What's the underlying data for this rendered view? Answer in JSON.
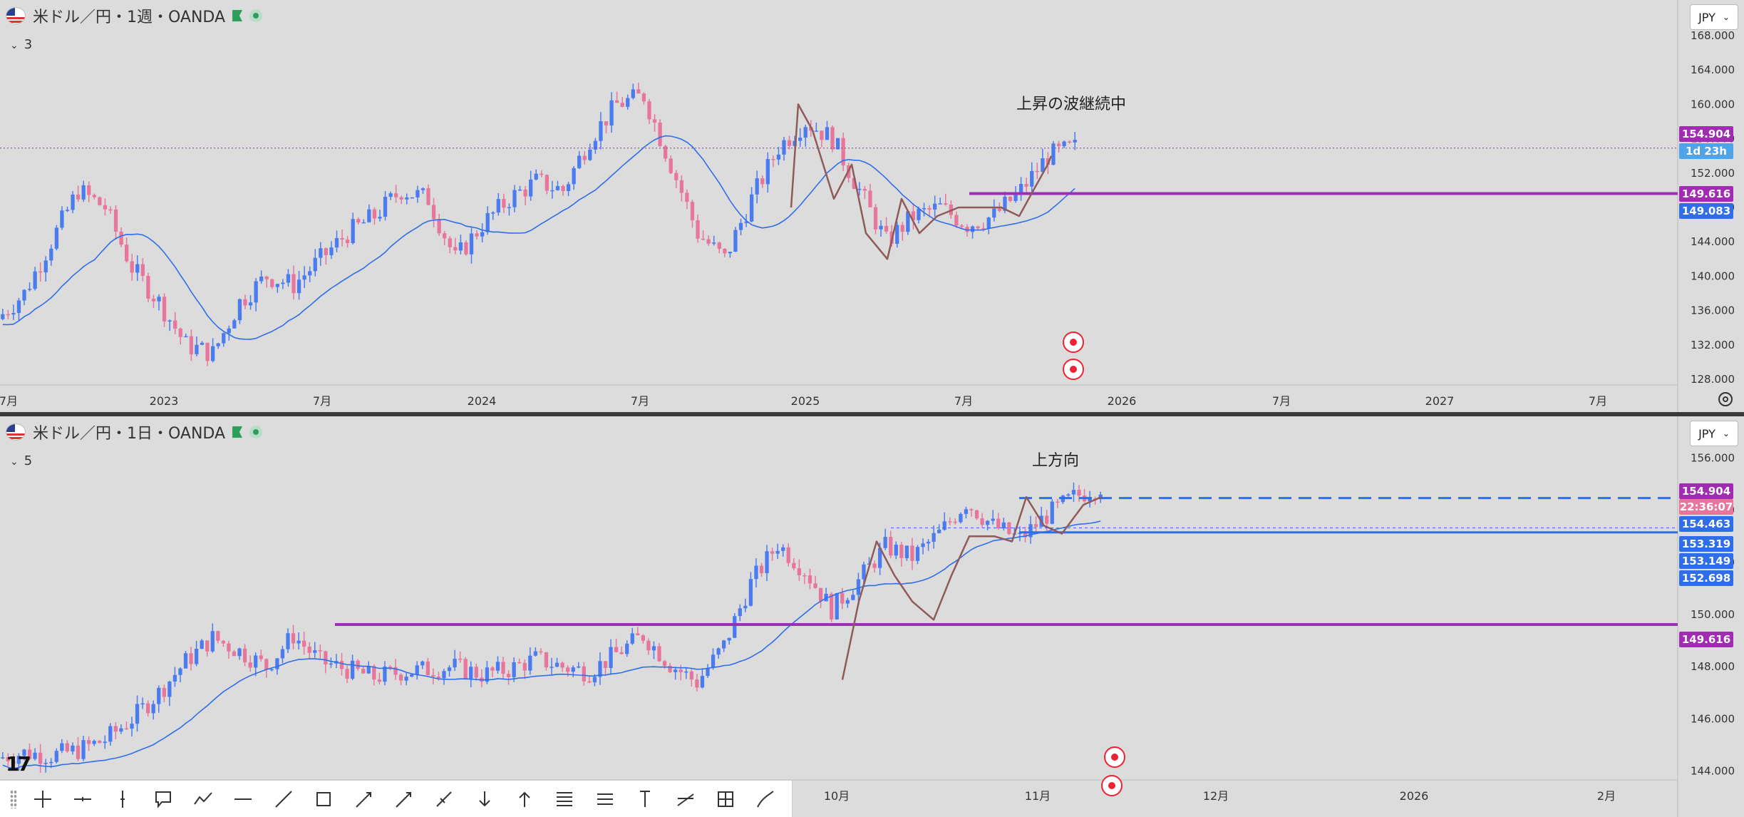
{
  "colors": {
    "background": "#dcdcdc",
    "bull": "#4a7cf0",
    "bear": "#e8769a",
    "ma": "#2f6ee8",
    "purple": "#9b2fb5",
    "wave": "#8e5a5a",
    "tag_purple": "#a22bb3",
    "tag_blue": "#2f6ee8",
    "tag_lightblue": "#4fa3e8",
    "tag_pink": "#e8769a"
  },
  "pane1": {
    "symbol": "米ドル／円・1週・OANDA",
    "indicator_count": "3",
    "currency": "JPY",
    "annotation": "上昇の波継続中",
    "price_ticks": [
      "168.000",
      "164.000",
      "160.000",
      "156.000",
      "152.000",
      "148.000",
      "144.000",
      "140.000",
      "136.000",
      "132.000",
      "128.000"
    ],
    "time_ticks": [
      "7月",
      "2023",
      "7月",
      "2024",
      "7月",
      "2025",
      "7月",
      "2026",
      "7月",
      "2027",
      "7月"
    ],
    "tags": [
      {
        "text": "154.904",
        "color": "tag_purple"
      },
      {
        "text": "1d 23h",
        "color": "tag_lightblue"
      },
      {
        "text": "149.616",
        "color": "tag_purple"
      },
      {
        "text": "149.083",
        "color": "tag_blue"
      }
    ]
  },
  "pane2": {
    "symbol": "米ドル／円・1日・OANDA",
    "indicator_count": "5",
    "currency": "JPY",
    "annotation": "上方向",
    "price_ticks": [
      "156.000",
      "154.000",
      "152.000",
      "150.000",
      "148.000",
      "146.000",
      "144.000"
    ],
    "time_ticks": [
      "10月",
      "11月",
      "12月",
      "2026",
      "2月"
    ],
    "tags": [
      {
        "text": "154.904",
        "color": "tag_purple"
      },
      {
        "text": "22:36:07",
        "color": "tag_pink"
      },
      {
        "text": "154.463",
        "color": "tag_blue"
      },
      {
        "text": "153.319",
        "color": "tag_blue"
      },
      {
        "text": "153.149",
        "color": "tag_blue"
      },
      {
        "text": "152.698",
        "color": "tag_blue"
      },
      {
        "text": "149.616",
        "color": "tag_purple"
      }
    ]
  },
  "toolbar": {
    "tools": [
      "crosshair-icon",
      "horizontal-ray-icon",
      "vertical-line-icon",
      "callout-icon",
      "path-icon",
      "horizontal-line-icon",
      "trend-line-icon",
      "rectangle-icon",
      "arrow-marker-icon",
      "arrow-icon",
      "info-line-icon",
      "arrow-down-icon",
      "arrow-up-icon",
      "fib-icon",
      "parallel-channel-icon",
      "price-range-icon",
      "projection-icon",
      "date-price-range-icon",
      "brush-icon"
    ]
  },
  "chart_data": [
    {
      "type": "candlestick",
      "title": "米ドル／円・1週・OANDA",
      "ylim": [
        128,
        168
      ],
      "x_ticks": [
        "7月",
        "2023",
        "7月",
        "2024",
        "7月",
        "2025",
        "7月",
        "2026",
        "7月",
        "2027",
        "7月"
      ],
      "y_ticks": [
        168,
        164,
        160,
        156,
        152,
        148,
        144,
        140,
        136,
        132,
        128
      ],
      "key_levels": [
        154.904,
        149.616,
        149.083
      ],
      "close_series_approx": [
        135,
        138,
        144,
        150,
        148,
        141,
        137,
        132,
        131,
        137,
        140,
        139,
        142,
        145,
        147,
        150,
        149,
        142,
        146,
        149,
        151,
        150,
        156,
        160,
        161,
        153,
        145,
        142,
        149,
        155,
        158,
        156,
        150,
        144,
        147,
        148,
        146,
        147,
        150,
        154,
        155
      ],
      "annotations": [
        "上昇の波継続中"
      ]
    },
    {
      "type": "candlestick",
      "title": "米ドル／円・1日・OANDA",
      "ylim": [
        143.5,
        156.5
      ],
      "x_ticks": [
        "10月",
        "11月",
        "12月",
        "2026",
        "2月"
      ],
      "y_ticks": [
        156,
        154,
        152,
        150,
        148,
        146,
        144
      ],
      "key_levels": [
        154.904,
        154.463,
        153.319,
        153.149,
        152.698,
        149.616
      ],
      "close_series_approx": [
        144.5,
        144.7,
        144.6,
        144.8,
        145.2,
        146.0,
        147.0,
        148.2,
        149.1,
        148.6,
        148.0,
        149.2,
        148.2,
        147.9,
        147.6,
        147.8,
        147.9,
        148.0,
        147.7,
        147.9,
        148.3,
        148.0,
        147.8,
        148.5,
        149.2,
        148.1,
        147.4,
        148.8,
        151.2,
        152.7,
        151.7,
        150.2,
        151.3,
        152.6,
        152.2,
        153.1,
        154.3,
        153.4,
        152.9,
        153.8,
        154.5,
        154.9
      ],
      "annotations": [
        "上方向"
      ]
    }
  ]
}
